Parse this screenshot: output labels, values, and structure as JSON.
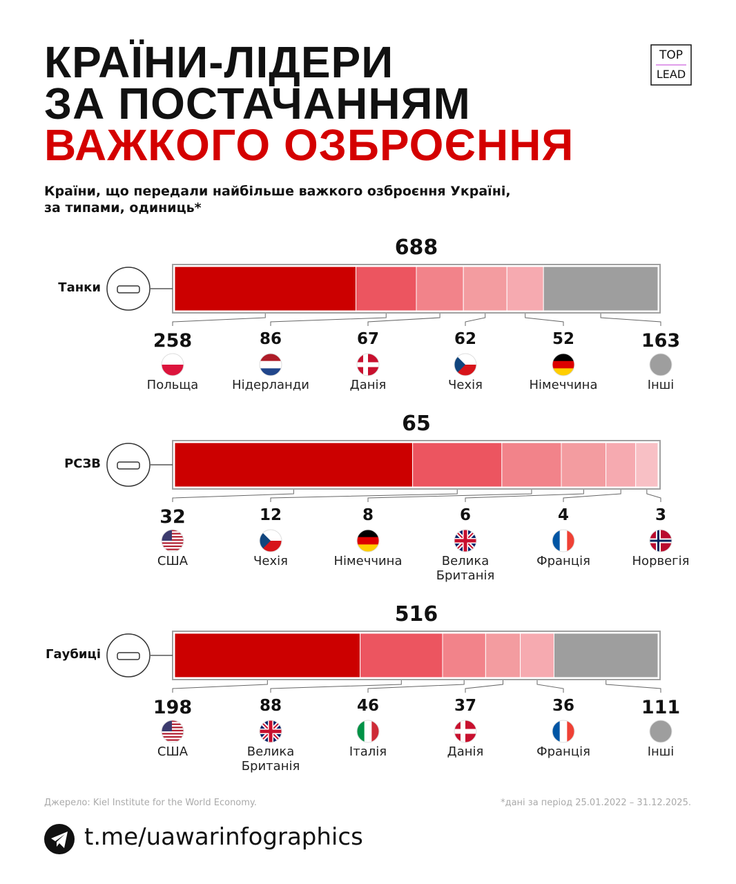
{
  "header": {
    "title_lines": [
      "КРАЇНИ-ЛІДЕРИ",
      "ЗА ПОСТАЧАННЯМ",
      "ВАЖКОГО ОЗБРОЄННЯ"
    ],
    "subtitle_lines": [
      "Країни, що передали найбільше важкого озброєння Україні,",
      "за типами, одиниць*"
    ],
    "logo": [
      "TOP",
      "LEAD"
    ]
  },
  "chart_data": [
    {
      "type": "stacked-bar",
      "label": "Танки",
      "total": 688,
      "series": [
        {
          "name": "Польща",
          "color": "#cc0000",
          "values": [
            258
          ]
        },
        {
          "name": "Нідерланди",
          "color": "#ec5560",
          "values": [
            86
          ]
        },
        {
          "name": "Данія",
          "color": "#f2838a",
          "values": [
            67
          ]
        },
        {
          "name": "Чехія",
          "color": "#f39ca0",
          "values": [
            62
          ]
        },
        {
          "name": "Німеччина",
          "color": "#f6aab0",
          "values": [
            52
          ]
        },
        {
          "name": "Інші",
          "color": "#9e9e9e",
          "values": [
            163
          ]
        }
      ]
    },
    {
      "type": "stacked-bar",
      "label": "РСЗВ",
      "total": 65,
      "series": [
        {
          "name": "США",
          "color": "#cc0000",
          "values": [
            32
          ]
        },
        {
          "name": "Чехія",
          "color": "#ec5560",
          "values": [
            12
          ]
        },
        {
          "name": "Німеччина",
          "color": "#f2838a",
          "values": [
            8
          ]
        },
        {
          "name": "Велика Британія",
          "color": "#f39ca0",
          "values": [
            6
          ]
        },
        {
          "name": "Франція",
          "color": "#f6aab0",
          "values": [
            4
          ]
        },
        {
          "name": "Норвегія",
          "color": "#f8c0c5",
          "values": [
            3
          ]
        }
      ]
    },
    {
      "type": "stacked-bar",
      "label": "Гаубиці",
      "total": 516,
      "series": [
        {
          "name": "США",
          "color": "#cc0000",
          "values": [
            198
          ]
        },
        {
          "name": "Велика Британія",
          "color": "#ec5560",
          "values": [
            88
          ]
        },
        {
          "name": "Італія",
          "color": "#f2838a",
          "values": [
            46
          ]
        },
        {
          "name": "Данія",
          "color": "#f39ca0",
          "values": [
            37
          ]
        },
        {
          "name": "Франція",
          "color": "#f6aab0",
          "values": [
            36
          ]
        },
        {
          "name": "Інші",
          "color": "#9e9e9e",
          "values": [
            111
          ]
        }
      ]
    }
  ],
  "footer": {
    "source": "Джерело: Kiel Institute for the World Economy.",
    "note": "*дані за період 25.01.2022 – 31.12.2025.",
    "link": "t.me/uawarinfographics"
  }
}
